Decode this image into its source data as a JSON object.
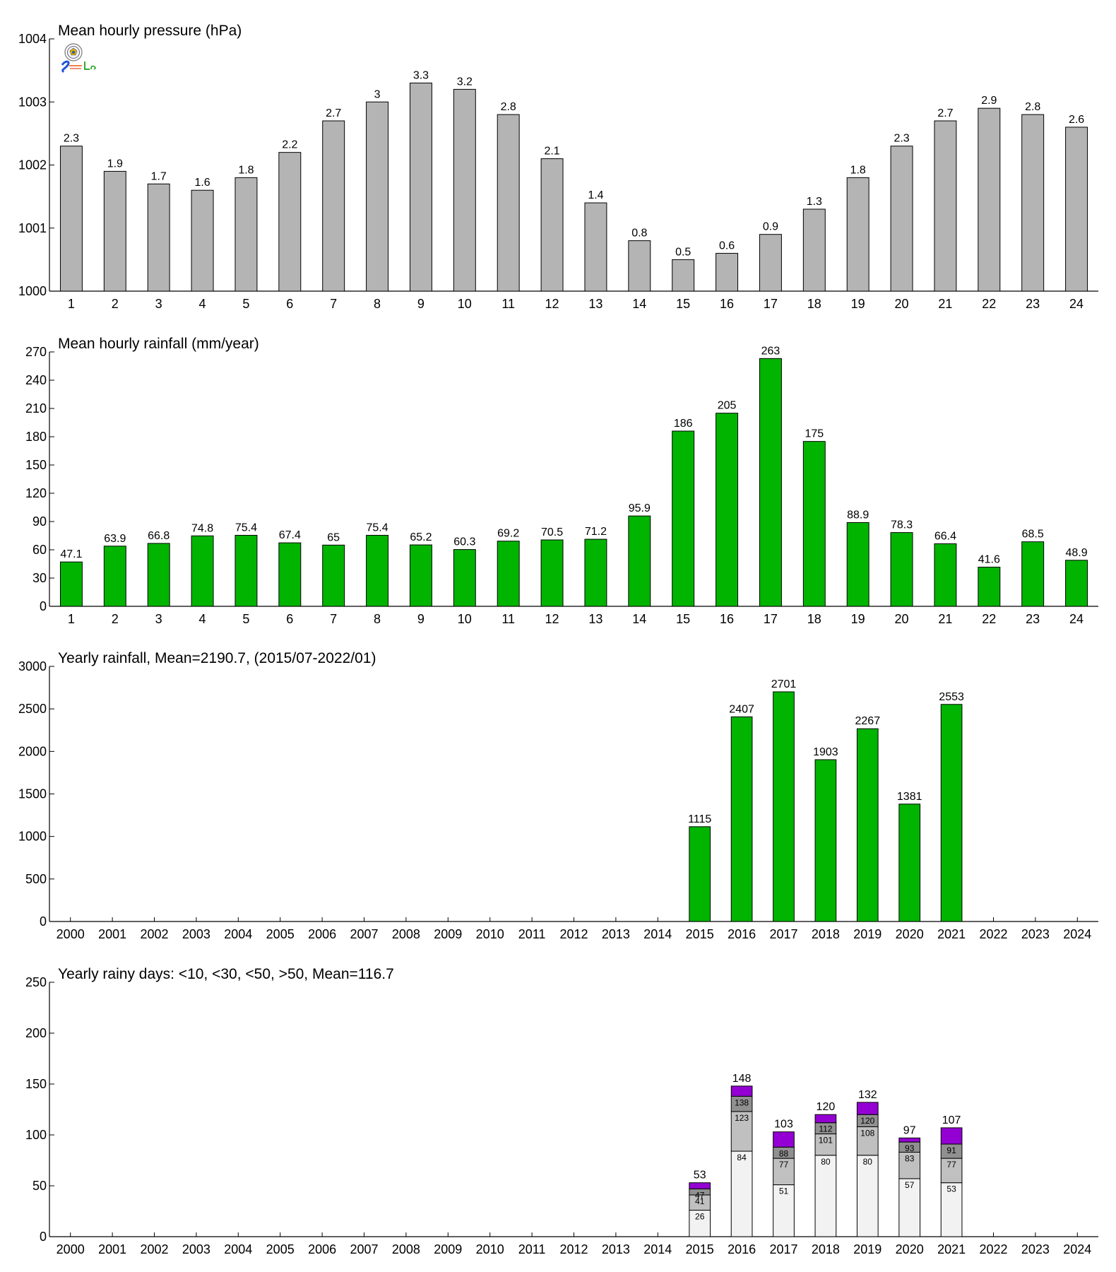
{
  "chart_data": [
    {
      "type": "bar",
      "title": "Mean hourly pressure (hPa)",
      "categories": [
        "1",
        "2",
        "3",
        "4",
        "5",
        "6",
        "7",
        "8",
        "9",
        "10",
        "11",
        "12",
        "13",
        "14",
        "15",
        "16",
        "17",
        "18",
        "19",
        "20",
        "21",
        "22",
        "23",
        "24"
      ],
      "values": [
        1002.3,
        1001.9,
        1001.7,
        1001.6,
        1001.8,
        1002.2,
        1002.7,
        1003,
        1003.3,
        1003.2,
        1002.8,
        1002.1,
        1001.4,
        1000.8,
        1000.5,
        1000.6,
        1000.9,
        1001.3,
        1001.8,
        1002.3,
        1002.7,
        1002.9,
        1002.8,
        1002.6
      ],
      "value_labels": [
        "2.3",
        "1.9",
        "1.7",
        "1.6",
        "1.8",
        "2.2",
        "2.7",
        "3",
        "3.3",
        "3.2",
        "2.8",
        "2.1",
        "1.4",
        "0.8",
        "0.5",
        "0.6",
        "0.9",
        "1.3",
        "1.8",
        "2.3",
        "2.7",
        "2.9",
        "2.8",
        "2.6"
      ],
      "ylim": [
        1000,
        1004
      ],
      "yticks": [
        1000,
        1001,
        1002,
        1003,
        1004
      ],
      "color": "#b4b4b4"
    },
    {
      "type": "bar",
      "title": "Mean hourly rainfall (mm/year)",
      "categories": [
        "1",
        "2",
        "3",
        "4",
        "5",
        "6",
        "7",
        "8",
        "9",
        "10",
        "11",
        "12",
        "13",
        "14",
        "15",
        "16",
        "17",
        "18",
        "19",
        "20",
        "21",
        "22",
        "23",
        "24"
      ],
      "values": [
        47.1,
        63.9,
        66.8,
        74.8,
        75.4,
        67.4,
        65,
        75.4,
        65.2,
        60.3,
        69.2,
        70.5,
        71.2,
        95.9,
        186,
        205,
        263,
        175,
        88.9,
        78.3,
        66.4,
        41.6,
        68.5,
        48.9
      ],
      "value_labels": [
        "47.1",
        "63.9",
        "66.8",
        "74.8",
        "75.4",
        "67.4",
        "65",
        "75.4",
        "65.2",
        "60.3",
        "69.2",
        "70.5",
        "71.2",
        "95.9",
        "186",
        "205",
        "263",
        "175",
        "88.9",
        "78.3",
        "66.4",
        "41.6",
        "68.5",
        "48.9"
      ],
      "ylim": [
        0,
        270
      ],
      "yticks": [
        0,
        30,
        60,
        90,
        120,
        150,
        180,
        210,
        240,
        270
      ],
      "color": "#00b400"
    },
    {
      "type": "bar",
      "title": "Yearly rainfall, Mean=2190.7, (2015/07-2022/01)",
      "categories": [
        "2000",
        "2001",
        "2002",
        "2003",
        "2004",
        "2005",
        "2006",
        "2007",
        "2008",
        "2009",
        "2010",
        "2011",
        "2012",
        "2013",
        "2014",
        "2015",
        "2016",
        "2017",
        "2018",
        "2019",
        "2020",
        "2021",
        "2022",
        "2023",
        "2024"
      ],
      "values": [
        null,
        null,
        null,
        null,
        null,
        null,
        null,
        null,
        null,
        null,
        null,
        null,
        null,
        null,
        null,
        1115,
        2407,
        2701,
        1903,
        2267,
        1381,
        2553,
        null,
        null,
        null
      ],
      "value_labels": [
        "",
        "",
        "",
        "",
        "",
        "",
        "",
        "",
        "",
        "",
        "",
        "",
        "",
        "",
        "",
        "1115",
        "2407",
        "2701",
        "1903",
        "2267",
        "1381",
        "2553",
        "",
        "",
        ""
      ],
      "ylim": [
        0,
        3000
      ],
      "yticks": [
        0,
        500,
        1000,
        1500,
        2000,
        2500,
        3000
      ],
      "color": "#00b400"
    },
    {
      "type": "bar",
      "stacked": true,
      "title": "Yearly rainy days: <10, <30, <50, >50, Mean=116.7",
      "categories": [
        "2000",
        "2001",
        "2002",
        "2003",
        "2004",
        "2005",
        "2006",
        "2007",
        "2008",
        "2009",
        "2010",
        "2011",
        "2012",
        "2013",
        "2014",
        "2015",
        "2016",
        "2017",
        "2018",
        "2019",
        "2020",
        "2021",
        "2022",
        "2023",
        "2024"
      ],
      "series": [
        {
          "name": "<10",
          "color": "#f2f2f2",
          "cumulative": [
            null,
            null,
            null,
            null,
            null,
            null,
            null,
            null,
            null,
            null,
            null,
            null,
            null,
            null,
            null,
            26,
            84,
            51,
            80,
            80,
            57,
            53,
            null,
            null,
            null
          ]
        },
        {
          "name": "<30",
          "color": "#c0c0c0",
          "cumulative": [
            null,
            null,
            null,
            null,
            null,
            null,
            null,
            null,
            null,
            null,
            null,
            null,
            null,
            null,
            null,
            41,
            123,
            77,
            101,
            108,
            83,
            77,
            null,
            null,
            null
          ]
        },
        {
          "name": "<50",
          "color": "#909090",
          "cumulative": [
            null,
            null,
            null,
            null,
            null,
            null,
            null,
            null,
            null,
            null,
            null,
            null,
            null,
            null,
            null,
            47,
            138,
            88,
            112,
            120,
            93,
            91,
            null,
            null,
            null
          ]
        },
        {
          "name": ">50",
          "color": "#9400d3",
          "cumulative": [
            null,
            null,
            null,
            null,
            null,
            null,
            null,
            null,
            null,
            null,
            null,
            null,
            null,
            null,
            null,
            53,
            148,
            103,
            120,
            132,
            97,
            107,
            null,
            null,
            null
          ]
        }
      ],
      "segment_labels": [
        [
          "",
          "",
          "",
          ""
        ],
        [
          "",
          "",
          "",
          ""
        ],
        [
          "",
          "",
          "",
          ""
        ],
        [
          "",
          "",
          "",
          ""
        ],
        [
          "",
          "",
          "",
          ""
        ],
        [
          "",
          "",
          "",
          ""
        ],
        [
          "",
          "",
          "",
          ""
        ],
        [
          "",
          "",
          "",
          ""
        ],
        [
          "",
          "",
          "",
          ""
        ],
        [
          "",
          "",
          "",
          ""
        ],
        [
          "",
          "",
          "",
          ""
        ],
        [
          "",
          "",
          "",
          ""
        ],
        [
          "",
          "",
          "",
          ""
        ],
        [
          "",
          "",
          "",
          ""
        ],
        [
          "",
          "",
          "",
          ""
        ],
        [
          "26",
          "41",
          "47",
          ""
        ],
        [
          "84",
          "123",
          "138",
          ""
        ],
        [
          "51",
          "77",
          "88",
          ""
        ],
        [
          "80",
          "101",
          "112",
          ""
        ],
        [
          "80",
          "108",
          "120",
          ""
        ],
        [
          "57",
          "83",
          "93",
          ""
        ],
        [
          "53",
          "77",
          "91",
          ""
        ],
        [
          "",
          "",
          "",
          ""
        ],
        [
          "",
          "",
          "",
          ""
        ],
        [
          "",
          "",
          "",
          ""
        ]
      ],
      "total_labels": [
        "",
        "",
        "",
        "",
        "",
        "",
        "",
        "",
        "",
        "",
        "",
        "",
        "",
        "",
        "",
        "53",
        "148",
        "103",
        "120",
        "132",
        "97",
        "107",
        "",
        "",
        ""
      ],
      "ylim": [
        0,
        250
      ],
      "yticks": [
        0,
        50,
        100,
        150,
        200,
        250
      ]
    }
  ],
  "logo": {
    "text": "S Lab"
  }
}
